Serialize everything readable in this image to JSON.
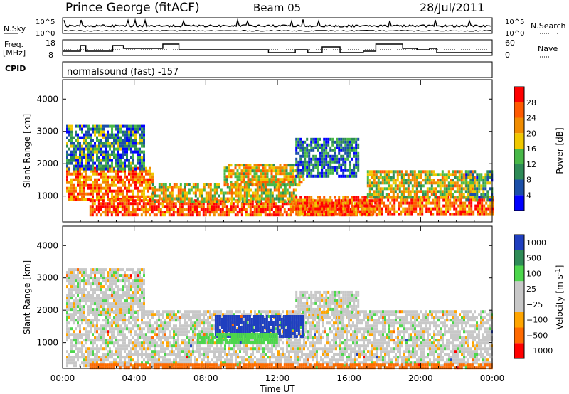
{
  "header": {
    "station": "Prince George (fitACF)",
    "beam": "Beam 05",
    "date": "28/Jul/2011"
  },
  "sky_panel": {
    "left_label": "N.Sky",
    "right_label": "N.Search",
    "left_ticks": [
      "10^5",
      "10^0"
    ],
    "right_ticks": [
      "10^5",
      "10^0"
    ]
  },
  "freq_panel": {
    "left_label_1": "Freq.",
    "left_label_2": "[MHz]",
    "right_label": "Nave",
    "left_ticks": [
      "18",
      "8"
    ],
    "right_ticks": [
      "60",
      "0"
    ]
  },
  "cpid": {
    "label": "CPID",
    "mode": "normalsound (fast) -157"
  },
  "colors": {
    "power_scale": [
      "#0000ff",
      "#1b4fa8",
      "#2e8b57",
      "#48b848",
      "#f0c800",
      "#f08c00",
      "#ff5a00",
      "#ff0000"
    ],
    "velocity_scale": [
      "#ff0000",
      "#ff6a00",
      "#ffa500",
      "#c8c8c8",
      "#c8c8c8",
      "#4cd64c",
      "#2e8b57",
      "#1f3fbf"
    ]
  },
  "chart_data": [
    {
      "type": "heatmap",
      "name": "Power",
      "ylabel": "Slant Range [km]",
      "yticks": [
        1000,
        2000,
        3000,
        4000
      ],
      "ylim": [
        200,
        4600
      ],
      "colorbar_label": "Power [dB]",
      "colorbar_ticks": [
        4,
        8,
        12,
        16,
        20,
        24,
        28
      ],
      "colorbar_range": [
        0,
        32
      ],
      "regions": [
        {
          "t0": 0.2,
          "t1": 5.0,
          "r0": 900,
          "r1": 1900,
          "level": 0.75
        },
        {
          "t0": 1.5,
          "t1": 17.5,
          "r0": 400,
          "r1": 900,
          "level": 0.85
        },
        {
          "t0": 5.0,
          "t1": 13.0,
          "r0": 800,
          "r1": 1400,
          "level": 0.55
        },
        {
          "t0": 13.0,
          "t1": 24.0,
          "r0": 400,
          "r1": 1000,
          "level": 0.8
        },
        {
          "t0": 17.0,
          "t1": 23.0,
          "r0": 1000,
          "r1": 1800,
          "level": 0.55
        },
        {
          "t0": 9.0,
          "t1": 13.5,
          "r0": 1300,
          "r1": 2000,
          "level": 0.6
        },
        {
          "t0": 0.2,
          "t1": 4.5,
          "r0": 1800,
          "r1": 3200,
          "level": 0.3
        },
        {
          "t0": 13.0,
          "t1": 16.5,
          "r0": 1600,
          "r1": 2800,
          "level": 0.25
        },
        {
          "t0": 22.5,
          "t1": 24.0,
          "r0": 900,
          "r1": 1800,
          "level": 0.35
        }
      ]
    },
    {
      "type": "heatmap",
      "name": "Velocity",
      "ylabel": "Slant Range [km]",
      "yticks": [
        1000,
        2000,
        3000,
        4000
      ],
      "ylim": [
        200,
        4600
      ],
      "colorbar_label": "Velocity [m s^-1]",
      "colorbar_ticks": [
        "1000",
        "500",
        "100",
        "25",
        "−25",
        "−100",
        "−500",
        "−1000"
      ],
      "regions": [
        {
          "t0": 0.2,
          "t1": 24.0,
          "r0": 300,
          "r1": 2000,
          "value": 0
        },
        {
          "t0": 0.2,
          "t1": 4.5,
          "r0": 1900,
          "r1": 3300,
          "value": 0
        },
        {
          "t0": 13.0,
          "t1": 16.5,
          "r0": 1800,
          "r1": 2600,
          "value": 0
        },
        {
          "t0": 8.5,
          "t1": 13.5,
          "r0": 1150,
          "r1": 1850,
          "value": 700
        },
        {
          "t0": 7.5,
          "t1": 12.0,
          "r0": 1000,
          "r1": 1300,
          "value": 150
        },
        {
          "t0": 1.5,
          "t1": 24.0,
          "r0": 200,
          "r1": 350,
          "value": -150
        }
      ]
    }
  ],
  "x_axis": {
    "label": "Time UT",
    "ticks": [
      "00:00",
      "04:00",
      "08:00",
      "12:00",
      "16:00",
      "20:00",
      "00:00"
    ],
    "range_hours": [
      0,
      24
    ]
  }
}
